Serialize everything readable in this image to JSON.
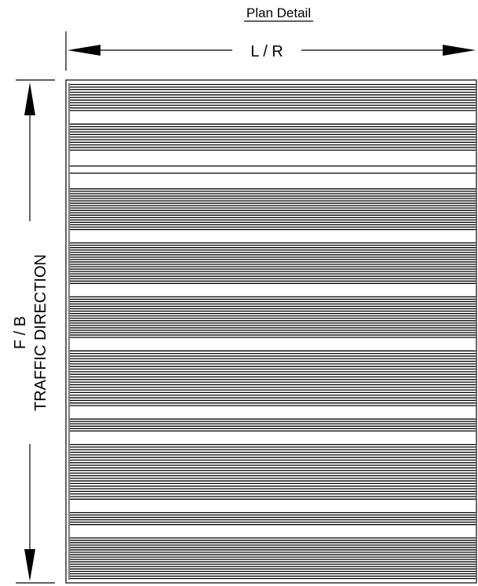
{
  "title": "Plan Detail",
  "width_dimension_label": "L / R",
  "length_dimension_label_line1": "F / B",
  "length_dimension_label_line2": "TRAFFIC DIRECTION",
  "colors": {
    "ink": "#000000",
    "paper": "#ffffff"
  },
  "plan": {
    "rib_orientation": "horizontal",
    "rib_groups": [
      {
        "ribs": 11,
        "rows": 2,
        "gap_after": true
      },
      {
        "ribs": 11,
        "rows": 2,
        "gap_after": true
      },
      {
        "ribs": 2,
        "rows": 1,
        "gap_after": true
      },
      {
        "ribs": 18,
        "rows": 3,
        "gap_after": true
      },
      {
        "ribs": 18,
        "rows": 3,
        "gap_after": true
      },
      {
        "ribs": 18,
        "rows": 3,
        "gap_after": true
      },
      {
        "ribs": 22,
        "rows": 4,
        "gap_after": true
      },
      {
        "ribs": 6,
        "rows": 1,
        "gap_after": true
      },
      {
        "ribs": 22,
        "rows": 4,
        "gap_after": true
      },
      {
        "ribs": 6,
        "rows": 1,
        "gap_after": true
      },
      {
        "ribs": 18,
        "rows": 3,
        "gap_after": false
      }
    ]
  }
}
